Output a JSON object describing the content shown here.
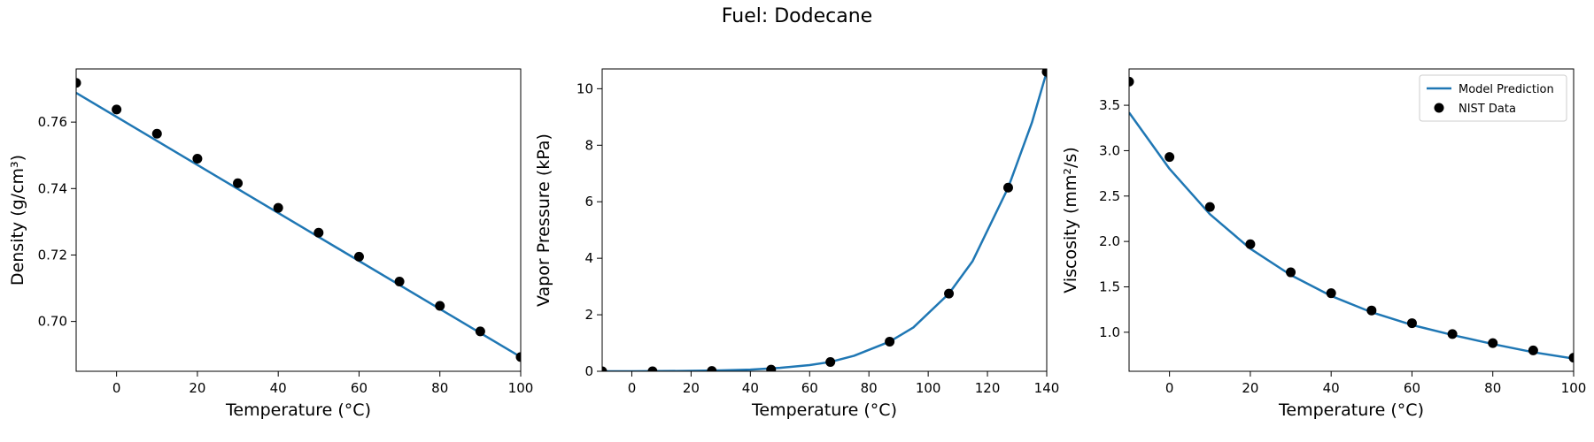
{
  "figure": {
    "title": "Fuel: Dodecane"
  },
  "legend": {
    "model_label": "Model Prediction",
    "nist_label": "NIST Data"
  },
  "colors": {
    "model": "#1f77b4",
    "data": "#000000"
  },
  "chart_data": [
    {
      "type": "scatter",
      "xlabel": "Temperature (°C)",
      "ylabel": "Density (g/cm³)",
      "xlim": [
        -10,
        100
      ],
      "ylim": [
        0.685,
        0.776
      ],
      "xticks": [
        0,
        20,
        40,
        60,
        80,
        100
      ],
      "yticks": [
        0.7,
        0.72,
        0.74,
        0.76
      ],
      "ytick_labels": [
        "0.70",
        "0.72",
        "0.74",
        "0.76"
      ],
      "series": [
        {
          "name": "Model Prediction",
          "kind": "line",
          "x": [
            -10,
            100
          ],
          "y": [
            0.7688,
            0.6893
          ]
        },
        {
          "name": "NIST Data",
          "kind": "points",
          "x": [
            -10,
            0,
            10,
            20,
            30,
            40,
            50,
            60,
            70,
            80,
            90,
            100
          ],
          "y": [
            0.7718,
            0.7638,
            0.7565,
            0.749,
            0.7416,
            0.7342,
            0.7267,
            0.7195,
            0.712,
            0.7047,
            0.697,
            0.6893
          ]
        }
      ],
      "legend": null
    },
    {
      "type": "scatter",
      "xlabel": "Temperature (°C)",
      "ylabel": "Vapor Pressure (kPa)",
      "xlim": [
        -10,
        140
      ],
      "ylim": [
        0,
        10.7
      ],
      "xticks": [
        0,
        20,
        40,
        60,
        80,
        100,
        120,
        140
      ],
      "yticks": [
        0,
        2,
        4,
        6,
        8,
        10
      ],
      "ytick_labels": [
        "0",
        "2",
        "4",
        "6",
        "8",
        "10"
      ],
      "series": [
        {
          "name": "Model Prediction",
          "kind": "line",
          "x": [
            -10,
            0,
            10,
            20,
            30,
            40,
            50,
            60,
            67,
            75,
            87,
            95,
            107,
            115,
            127,
            135,
            140
          ],
          "y": [
            0.0005,
            0.002,
            0.006,
            0.014,
            0.03,
            0.06,
            0.12,
            0.22,
            0.33,
            0.55,
            1.05,
            1.55,
            2.75,
            3.9,
            6.5,
            8.8,
            10.6
          ]
        },
        {
          "name": "NIST Data",
          "kind": "points",
          "x": [
            -10,
            7,
            27,
            47,
            67,
            87,
            107,
            127,
            140
          ],
          "y": [
            0.0,
            0.0,
            0.01,
            0.06,
            0.33,
            1.05,
            2.75,
            6.5,
            10.6
          ]
        }
      ],
      "legend": null
    },
    {
      "type": "scatter",
      "xlabel": "Temperature (°C)",
      "ylabel": "Viscosity (mm²/s)",
      "xlim": [
        -10,
        100
      ],
      "ylim": [
        0.57,
        3.9
      ],
      "xticks": [
        0,
        20,
        40,
        60,
        80,
        100
      ],
      "yticks": [
        1.0,
        1.5,
        2.0,
        2.5,
        3.0,
        3.5
      ],
      "ytick_labels": [
        "1.0",
        "1.5",
        "2.0",
        "2.5",
        "3.0",
        "3.5"
      ],
      "series": [
        {
          "name": "Model Prediction",
          "kind": "line",
          "x": [
            -10,
            0,
            10,
            20,
            30,
            40,
            50,
            60,
            70,
            80,
            90,
            100
          ],
          "y": [
            3.42,
            2.8,
            2.3,
            1.92,
            1.63,
            1.4,
            1.22,
            1.08,
            0.97,
            0.87,
            0.78,
            0.71
          ]
        },
        {
          "name": "NIST Data",
          "kind": "points",
          "x": [
            -10,
            0,
            10,
            20,
            30,
            40,
            50,
            60,
            70,
            80,
            90,
            100
          ],
          "y": [
            3.76,
            2.93,
            2.38,
            1.97,
            1.66,
            1.43,
            1.24,
            1.1,
            0.98,
            0.88,
            0.8,
            0.72
          ]
        }
      ],
      "legend": "upper right"
    }
  ]
}
